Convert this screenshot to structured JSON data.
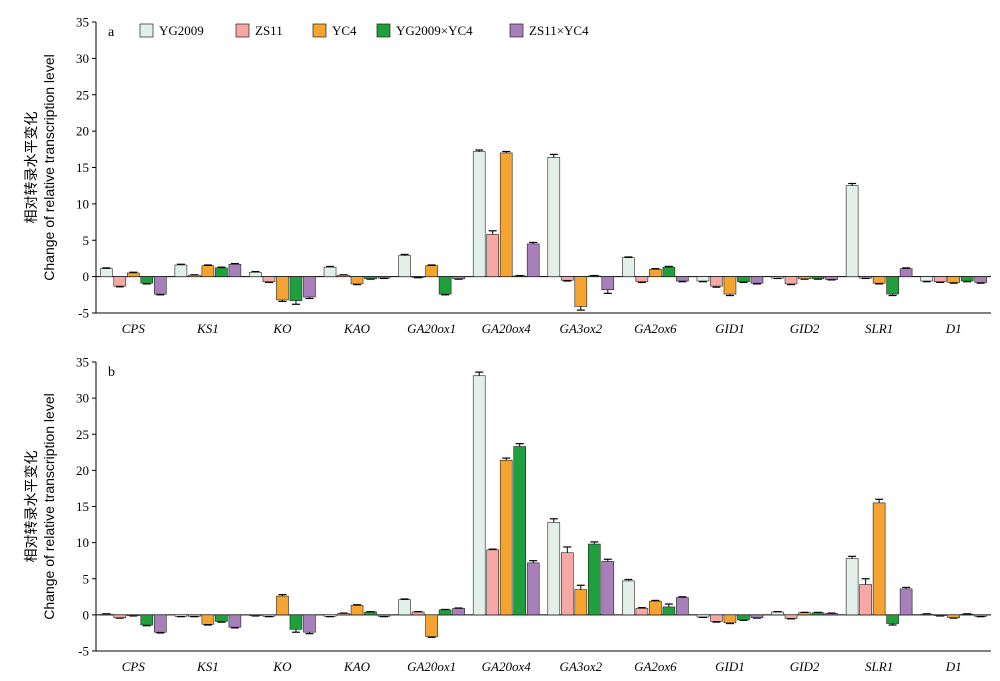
{
  "colors": {
    "YG2009": "#e3f0e9",
    "ZS11": "#f7a8a4",
    "YC4": "#f5a432",
    "YG2009×YC4": "#1fa03c",
    "ZS11×YC4": "#a77fbb"
  },
  "chart_data": [
    {
      "type": "bar",
      "panel_label": "a",
      "ylabel_cn": "相对转录水平变化",
      "ylabel_en": "Change of relative transcription level",
      "ylim": [
        -5,
        35
      ],
      "yticks": [
        -5,
        0,
        5,
        10,
        15,
        20,
        25,
        30,
        35
      ],
      "legend_position": "top",
      "categories": [
        "CPS",
        "KS1",
        "KO",
        "KAO",
        "GA20ox1",
        "GA20ox4",
        "GA3ox2",
        "GA2ox6",
        "GID1",
        "GID2",
        "SLR1",
        "D1"
      ],
      "series": [
        {
          "name": "YG2009",
          "values": [
            1.1,
            1.6,
            0.6,
            1.3,
            2.9,
            17.2,
            16.4,
            2.6,
            -0.6,
            -0.2,
            12.5,
            -0.6
          ],
          "errors": [
            0.1,
            0.1,
            0.1,
            0.1,
            0.15,
            0.2,
            0.4,
            0.1,
            0.1,
            0.05,
            0.3,
            0.1
          ]
        },
        {
          "name": "ZS11",
          "values": [
            -1.3,
            0.2,
            -0.7,
            0.2,
            -0.1,
            5.8,
            -0.5,
            -0.7,
            -1.3,
            -1.0,
            -0.2,
            -0.7
          ],
          "errors": [
            0.1,
            0.05,
            0.1,
            0.05,
            0.05,
            0.5,
            0.1,
            0.1,
            0.15,
            0.1,
            0.05,
            0.1
          ]
        },
        {
          "name": "YC4",
          "values": [
            0.5,
            1.5,
            -3.2,
            -1.0,
            1.5,
            17.0,
            -4.1,
            1.0,
            -2.4,
            -0.3,
            -0.9,
            -0.8
          ],
          "errors": [
            0.1,
            0.1,
            0.2,
            0.1,
            0.1,
            0.2,
            0.5,
            0.1,
            0.2,
            0.05,
            0.1,
            0.1
          ]
        },
        {
          "name": "YG2009×YC4",
          "values": [
            -0.9,
            1.2,
            -3.3,
            -0.3,
            -2.4,
            0.1,
            0.1,
            1.3,
            -0.7,
            -0.3,
            -2.4,
            -0.6
          ],
          "errors": [
            0.1,
            0.1,
            0.5,
            0.05,
            0.1,
            0.05,
            0.05,
            0.1,
            0.1,
            0.05,
            0.2,
            0.1
          ]
        },
        {
          "name": "ZS11×YC4",
          "values": [
            -2.4,
            1.7,
            -2.8,
            -0.2,
            -0.3,
            4.5,
            -1.8,
            -0.6,
            -0.9,
            -0.4,
            1.1,
            -0.8
          ],
          "errors": [
            0.1,
            0.1,
            0.2,
            0.05,
            0.05,
            0.2,
            0.5,
            0.1,
            0.1,
            0.05,
            0.1,
            0.1
          ]
        }
      ]
    },
    {
      "type": "bar",
      "panel_label": "b",
      "ylabel_cn": "相对转录水平变化",
      "ylabel_en": "Change of relative transcription level",
      "ylim": [
        -5,
        35
      ],
      "yticks": [
        -5,
        0,
        5,
        10,
        15,
        20,
        25,
        30,
        35
      ],
      "categories": [
        "CPS",
        "KS1",
        "KO",
        "KAO",
        "GA20ox1",
        "GA20ox4",
        "GA3ox2",
        "GA2ox6",
        "GID1",
        "GID2",
        "SLR1",
        "D1"
      ],
      "series": [
        {
          "name": "YG2009",
          "values": [
            0.1,
            -0.2,
            -0.1,
            -0.2,
            2.1,
            33.1,
            12.8,
            4.7,
            -0.3,
            0.4,
            7.8,
            0.1
          ],
          "errors": [
            0.05,
            0.05,
            0.05,
            0.05,
            0.1,
            0.5,
            0.5,
            0.2,
            0.05,
            0.05,
            0.3,
            0.05
          ]
        },
        {
          "name": "ZS11",
          "values": [
            -0.4,
            -0.2,
            -0.2,
            0.2,
            0.4,
            9.0,
            8.6,
            0.9,
            -0.9,
            -0.5,
            4.2,
            -0.1
          ],
          "errors": [
            0.05,
            0.05,
            0.05,
            0.05,
            0.05,
            0.1,
            0.8,
            0.1,
            0.1,
            0.05,
            0.8,
            0.05
          ]
        },
        {
          "name": "YC4",
          "values": [
            -0.1,
            -1.3,
            2.6,
            1.3,
            -3.0,
            21.4,
            3.5,
            1.9,
            -1.1,
            0.3,
            15.5,
            -0.4
          ],
          "errors": [
            0.05,
            0.1,
            0.2,
            0.1,
            0.1,
            0.3,
            0.6,
            0.1,
            0.1,
            0.05,
            0.5,
            0.05
          ]
        },
        {
          "name": "YG2009×YC4",
          "values": [
            -1.4,
            -0.9,
            -2.0,
            0.4,
            0.7,
            23.3,
            9.8,
            1.1,
            -0.7,
            0.3,
            -1.2,
            0.1
          ],
          "errors": [
            0.1,
            0.1,
            0.4,
            0.05,
            0.05,
            0.4,
            0.3,
            0.4,
            0.05,
            0.05,
            0.2,
            0.05
          ]
        },
        {
          "name": "ZS11×YC4",
          "values": [
            -2.4,
            -1.7,
            -2.4,
            -0.2,
            0.9,
            7.2,
            7.4,
            2.4,
            -0.4,
            0.2,
            3.6,
            -0.2
          ],
          "errors": [
            0.1,
            0.1,
            0.2,
            0.05,
            0.05,
            0.3,
            0.3,
            0.1,
            0.05,
            0.05,
            0.2,
            0.05
          ]
        }
      ]
    }
  ]
}
